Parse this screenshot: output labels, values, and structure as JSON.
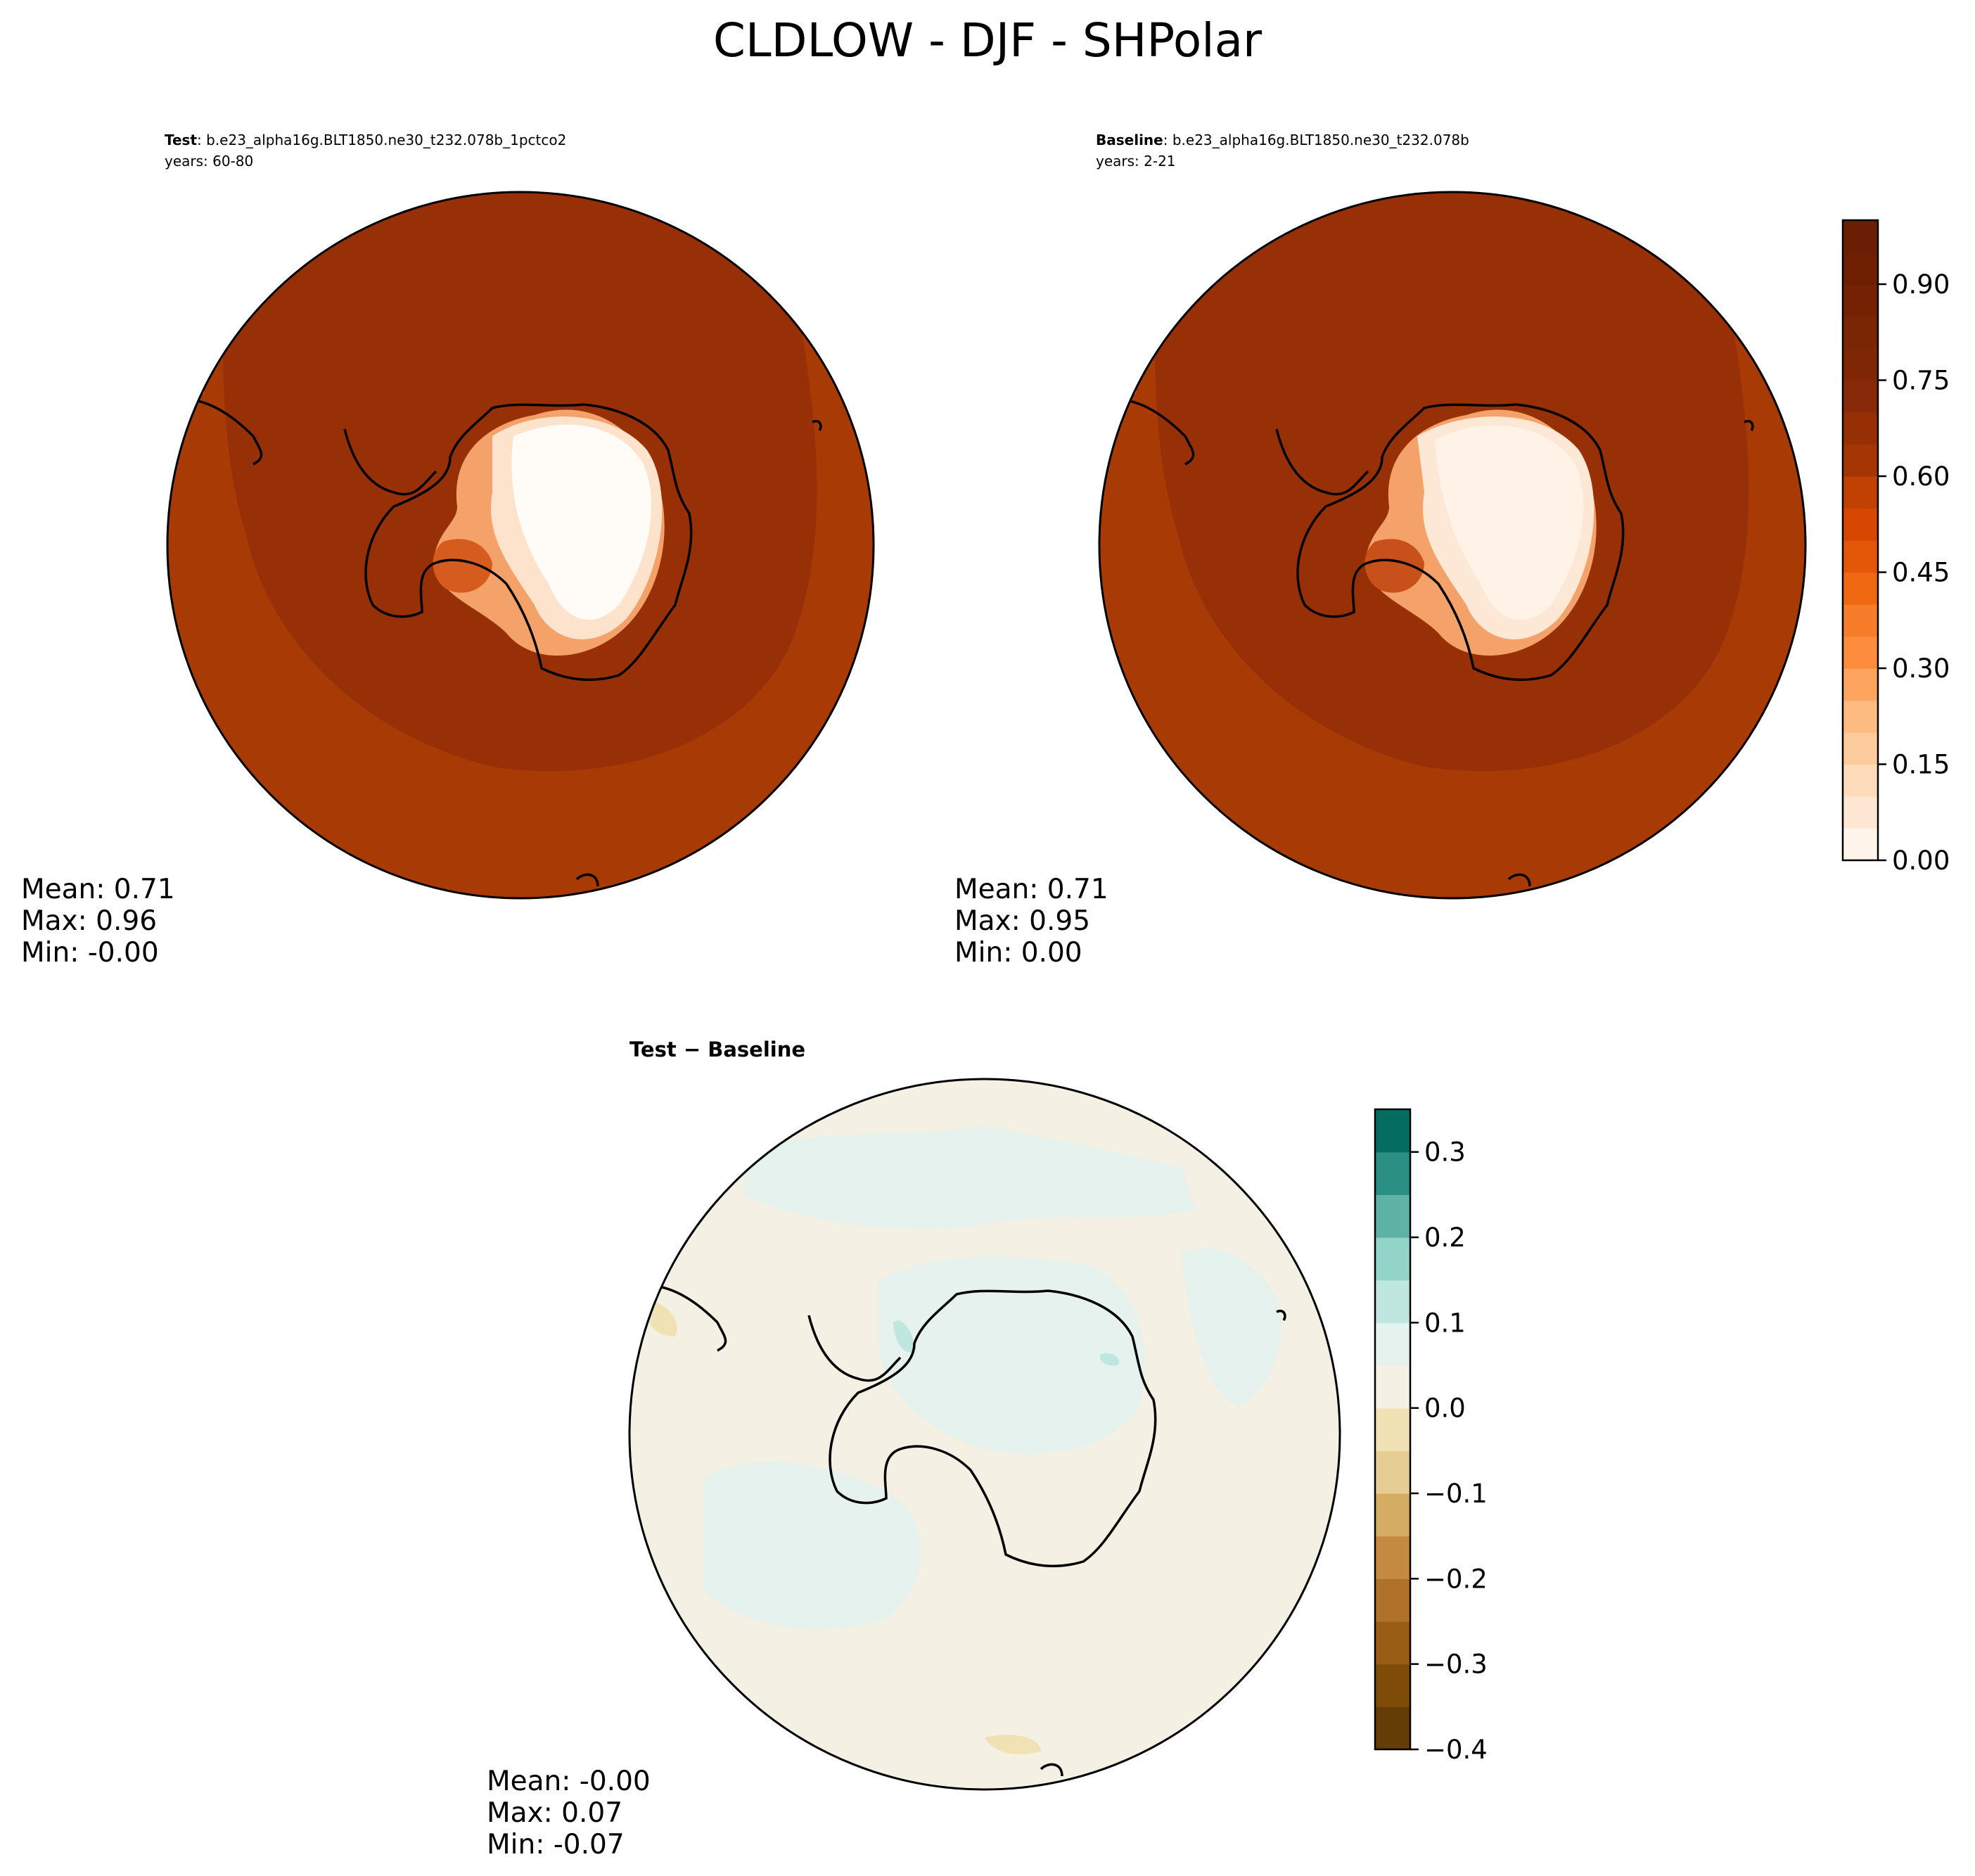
{
  "title": "CLDLOW - DJF - SHPolar",
  "panels": [
    {
      "id": "test",
      "label": "Test",
      "sep": ": ",
      "name": "b.e23_alpha16g.BLT1850.ne30_t232.078b_1pctco2",
      "years": "years: 60-80",
      "stats": {
        "mean": "Mean:  0.71",
        "max": "Max:  0.96",
        "min": "Min: -0.00"
      }
    },
    {
      "id": "baseline",
      "label": "Baseline",
      "sep": ": ",
      "name": "b.e23_alpha16g.BLT1850.ne30_t232.078b",
      "years": "years: 2-21",
      "stats": {
        "mean": "Mean:  0.71",
        "max": "Max:  0.95",
        "min": "Min:  0.00"
      }
    },
    {
      "id": "diff",
      "label": "Test − Baseline",
      "stats": {
        "mean": "Mean: -0.00",
        "max": "Max:  0.07",
        "min": "Min: -0.07"
      }
    }
  ],
  "chart_data": [
    {
      "type": "heatmap",
      "projection": "south polar stereographic",
      "colorbar": {
        "ticks": [
          "0.00",
          "0.15",
          "0.30",
          "0.45",
          "0.60",
          "0.75",
          "0.90"
        ],
        "tick_values": [
          0.0,
          0.15,
          0.3,
          0.45,
          0.6,
          0.75,
          0.9
        ],
        "range": [
          0.0,
          1.0
        ],
        "levels": 20,
        "colors": [
          "#fff5eb",
          "#fee8d3",
          "#fedcbb",
          "#fdcc9c",
          "#fdbb82",
          "#fda45f",
          "#fd8d3c",
          "#f77d2b",
          "#f16813",
          "#e45709",
          "#d84701",
          "#c04101",
          "#a53603",
          "#962f03",
          "#88290a",
          "#7f2704",
          "#7a2504",
          "#742203",
          "#6f2003",
          "#6a1e03"
        ]
      }
    },
    {
      "type": "heatmap",
      "projection": "south polar stereographic",
      "colorbar": {
        "ticks": [
          "−0.4",
          "−0.3",
          "−0.2",
          "−0.1",
          "0.0",
          "0.1",
          "0.2",
          "0.3"
        ],
        "tick_values": [
          -0.4,
          -0.3,
          -0.2,
          -0.1,
          0.0,
          0.1,
          0.2,
          0.3
        ],
        "range": [
          -0.4,
          0.35
        ],
        "levels": 15,
        "colors": [
          "#643c05",
          "#7f4b09",
          "#9a5d16",
          "#b0722a",
          "#c58a41",
          "#d5ac63",
          "#e5cd93",
          "#f1e2b6",
          "#f4f0e4",
          "#e5f2ee",
          "#bfe6df",
          "#92d4c7",
          "#5eb3a6",
          "#2c8f83",
          "#046c60"
        ]
      }
    }
  ],
  "colors": {
    "axis": "#000000",
    "frame_edge": "#ffffff"
  }
}
